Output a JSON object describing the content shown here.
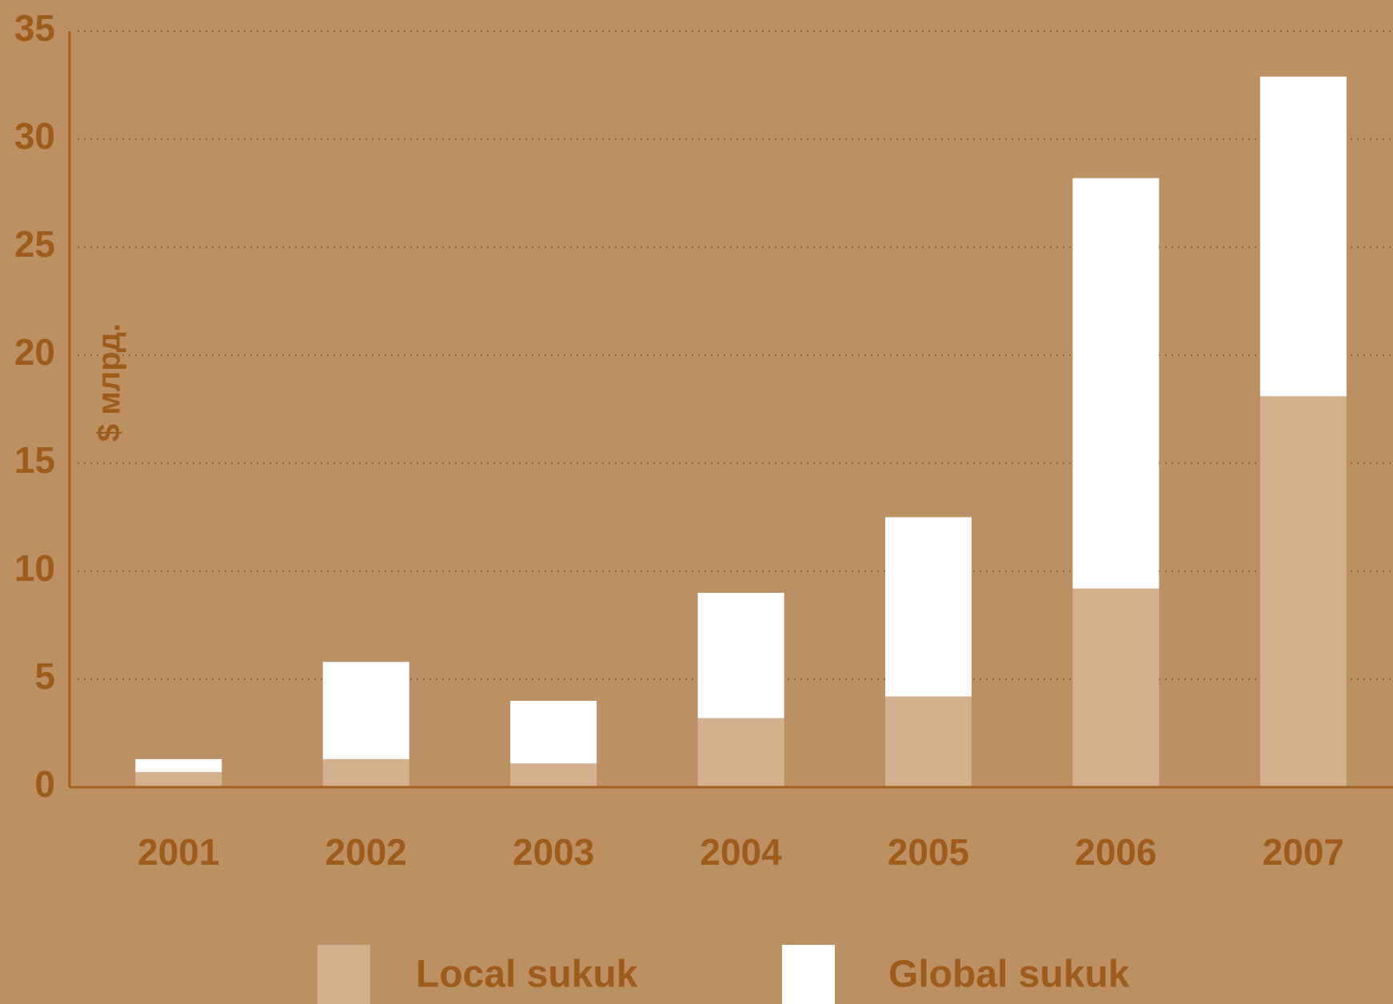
{
  "chart_data": {
    "type": "stacked_bar",
    "y_label": "$ млрд.",
    "categories": [
      "2001",
      "2002",
      "2003",
      "2004",
      "2005",
      "2006",
      "2007"
    ],
    "series": [
      {
        "name": "Local sukuk",
        "color": "#d4b08e",
        "values": [
          0.7,
          1.3,
          1.1,
          3.2,
          4.2,
          9.2,
          18.1
        ]
      },
      {
        "name": "Global sukuk",
        "color": "#ffffff",
        "values": [
          0.6,
          4.5,
          2.9,
          5.8,
          8.3,
          19.0,
          14.8
        ]
      }
    ],
    "ylim": [
      0,
      35
    ],
    "yticks": [
      0,
      5,
      10,
      15,
      20,
      25,
      30,
      35
    ],
    "grid": true
  }
}
